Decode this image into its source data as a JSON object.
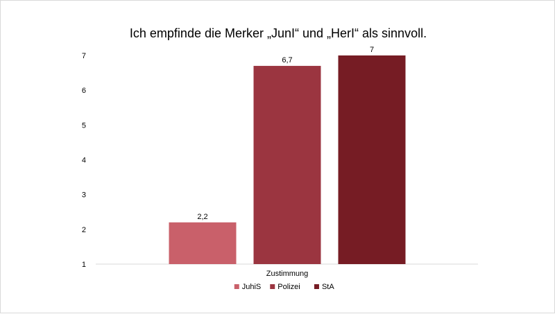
{
  "chart_data": {
    "type": "bar",
    "title": "Ich empfinde die Merker „JunI“ und „HerI“ als sinnvoll.",
    "categories": [
      "Zustimmung"
    ],
    "series": [
      {
        "name": "JuhiS",
        "values": [
          2.2
        ],
        "label": "2,2",
        "color": "#c9606a"
      },
      {
        "name": "Polizei",
        "values": [
          6.7
        ],
        "label": "6,7",
        "color": "#9b3540"
      },
      {
        "name": "StA",
        "values": [
          7
        ],
        "label": "7",
        "color": "#761c24"
      }
    ],
    "ylim": [
      1,
      7
    ],
    "yticks": [
      "1",
      "2",
      "3",
      "4",
      "5",
      "6",
      "7"
    ],
    "xlabel": "",
    "ylabel": "",
    "grid": false,
    "legend_position": "bottom"
  }
}
